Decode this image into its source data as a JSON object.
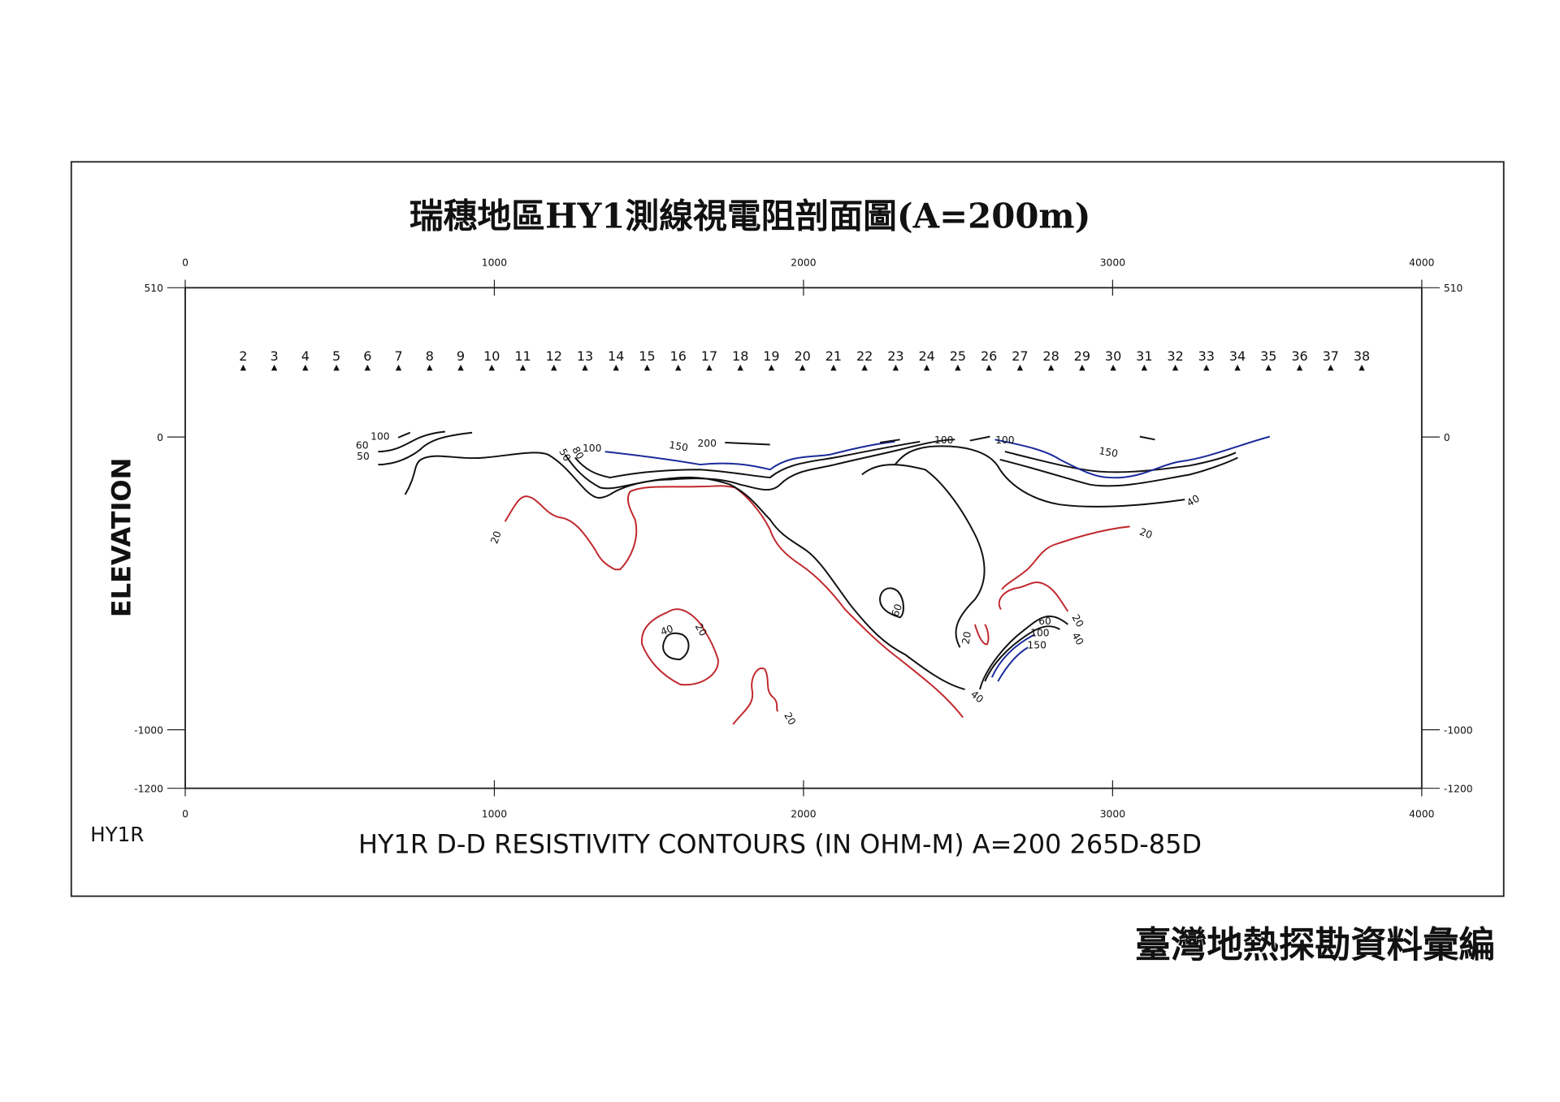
{
  "chart_data": {
    "type": "contour",
    "title": "瑞穗地區HY1測線視電阻剖面圖(A=200m)",
    "subtitle": "HY1R   D-D RESISTIVITY  CONTOURS  (IN OHM-M) A=200  265D-85D",
    "line_id": "HY1R",
    "ylabel": "ELEVATION",
    "xlim": [
      0,
      4000
    ],
    "xticks": [
      0,
      1000,
      2000,
      3000,
      4000
    ],
    "ylim": [
      -1200,
      510
    ],
    "yticks": [
      510,
      0,
      -1000,
      -1200
    ],
    "stations": [
      2,
      3,
      4,
      5,
      6,
      7,
      8,
      9,
      10,
      11,
      12,
      13,
      14,
      15,
      16,
      17,
      18,
      19,
      20,
      21,
      22,
      23,
      24,
      25,
      26,
      27,
      28,
      29,
      30,
      31,
      32,
      33,
      34,
      35,
      36,
      37,
      38
    ],
    "levels": [
      {
        "value": 20,
        "color": "#c0282d"
      },
      {
        "value": 40,
        "color": "#111111"
      },
      {
        "value": 50,
        "color": "#111111"
      },
      {
        "value": 60,
        "color": "#111111"
      },
      {
        "value": 80,
        "color": "#111111"
      },
      {
        "value": 100,
        "color": "#111111"
      },
      {
        "value": 150,
        "color": "#1a2a9a"
      },
      {
        "value": 200,
        "color": "#111111"
      }
    ]
  },
  "footer": "臺灣地熱探勘資料彙編"
}
